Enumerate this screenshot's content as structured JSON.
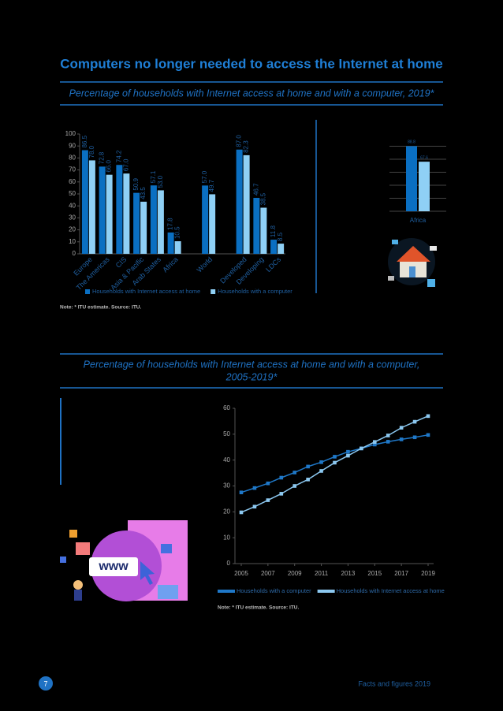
{
  "title": "Computers no longer needed to access the Internet at home",
  "subtitle_1": "Percentage of households with Internet access at home and with a computer, 2019*",
  "subtitle_2": [
    "Percentage of households with Internet access at home and with a computer,",
    "2005-2019*"
  ],
  "chart_data": [
    {
      "type": "bar",
      "categories": [
        "Europe",
        "The Americas",
        "CIS",
        "Asia & Pacific",
        "Arab States",
        "Africa",
        null,
        "World",
        null,
        "Developed",
        "Developing",
        "LDCs"
      ],
      "series": [
        {
          "name": "Households with Internet access at home",
          "color": "#0a6fc2",
          "values": [
            86.5,
            72.8,
            74.2,
            50.9,
            57.1,
            17.8,
            null,
            57.0,
            null,
            87.0,
            46.7,
            11.8
          ],
          "value_labels": [
            "86.5",
            "72.8",
            "74.2",
            "50.9",
            "57.1",
            "17.8",
            null,
            "57.0",
            null,
            "87.0",
            "46.7",
            "11.8"
          ]
        },
        {
          "name": "Households with a computer",
          "color": "#8fd0f5",
          "values": [
            78.0,
            66.0,
            67.0,
            43.5,
            53.0,
            10.5,
            null,
            49.7,
            null,
            82.3,
            38.5,
            8.5
          ],
          "value_labels": [
            "78.0",
            "66.0",
            "67.0",
            "43.5",
            "53.0",
            "10.5",
            null,
            "49.7",
            null,
            "82.3",
            "38.5",
            "8.5"
          ]
        }
      ],
      "ylim": [
        0,
        100
      ],
      "yticks": [
        0,
        10,
        20,
        30,
        40,
        50,
        60,
        70,
        80,
        90,
        100
      ],
      "note": "Note: * ITU estimate.   Source: ITU."
    },
    {
      "type": "bar",
      "categories": [
        "Africa"
      ],
      "series": [
        {
          "color": "#0a6fc2",
          "values": [
            88.8
          ],
          "value_labels": [
            "88.8"
          ]
        },
        {
          "color": "#8fd0f5",
          "values": [
            67.6
          ],
          "value_labels": [
            "67.6"
          ]
        }
      ]
    },
    {
      "type": "line",
      "x": [
        2005,
        2006,
        2007,
        2008,
        2009,
        2010,
        2011,
        2012,
        2013,
        2014,
        2015,
        2016,
        2017,
        2018,
        2019
      ],
      "series": [
        {
          "name": "Households with a computer",
          "color": "#1f78c8",
          "values": [
            27.5,
            29.2,
            31.0,
            33.2,
            35.2,
            37.5,
            39.2,
            41.3,
            43.2,
            44.5,
            46.0,
            47.1,
            48.0,
            48.8,
            49.7
          ]
        },
        {
          "name": "Households with Internet access at home",
          "color": "#8cc8f0",
          "values": [
            19.8,
            22.0,
            24.5,
            27.0,
            30.0,
            32.5,
            35.8,
            39.0,
            41.7,
            44.5,
            47.0,
            49.5,
            52.5,
            54.8,
            57.0
          ]
        }
      ],
      "xlim": [
        2005,
        2019
      ],
      "xticks": [
        2005,
        2007,
        2009,
        2011,
        2013,
        2015,
        2017,
        2019
      ],
      "ylim": [
        0,
        60
      ],
      "yticks": [
        0,
        10,
        20,
        30,
        40,
        50,
        60
      ],
      "note": "Note: * ITU estimate.   Source: ITU."
    }
  ],
  "illustration_text": "www",
  "footer": {
    "page": "7",
    "text": "Facts and figures 2019"
  }
}
